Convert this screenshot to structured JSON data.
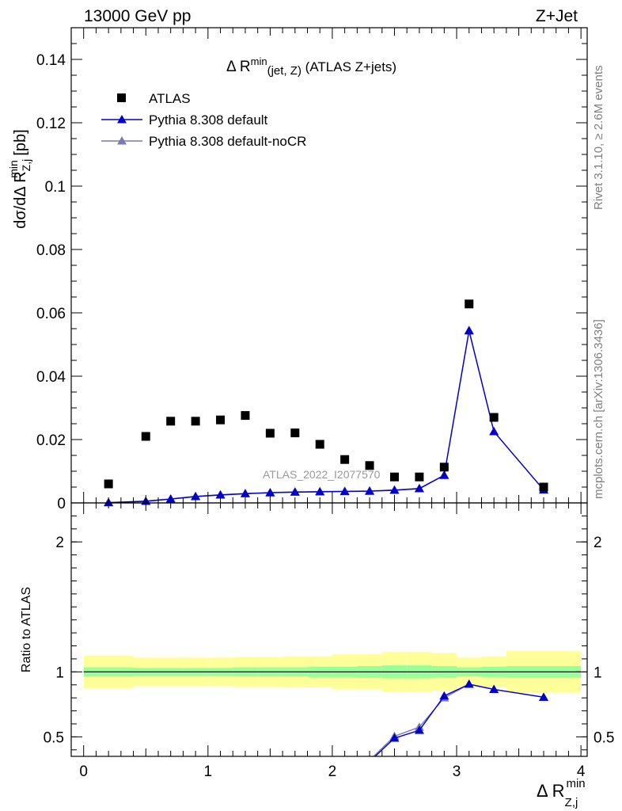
{
  "header": {
    "left": "13000 GeV pp",
    "right": "Z+Jet"
  },
  "side_labels": {
    "rivet": "Rivet 3.1.10, ≥ 2.6M events",
    "mcplots": "mcplots.cern.ch [arXiv:1306.3436]"
  },
  "main_panel": {
    "title_prefix": "Δ R",
    "title_sup": "min",
    "title_sub": "(jet, Z)",
    "title_suffix": " (ATLAS Z+jets)",
    "ylabel_main": "dσ/dΔ R",
    "ylabel_sup": "min",
    "ylabel_sub": "Z,j",
    "ylabel_unit": " [pb]",
    "watermark": "ATLAS_2022_I2077570"
  },
  "ratio_panel": {
    "ylabel": "Ratio to ATLAS"
  },
  "xlabel": {
    "main": "Δ R",
    "sup": "min",
    "sub": "Z,j"
  },
  "legend": [
    {
      "label": "ATLAS",
      "marker": "square",
      "color": "#000000"
    },
    {
      "label": "Pythia 8.308 default",
      "marker": "triangle",
      "color": "#0000cc"
    },
    {
      "label": "Pythia 8.308 default-noCR",
      "marker": "triangle",
      "color": "#7a7ab8"
    }
  ],
  "chart_data": {
    "type": "scatter",
    "x_ticks": [
      0,
      1,
      2,
      3,
      4
    ],
    "xlim": [
      -0.1,
      4.05
    ],
    "main": {
      "ylim": [
        0,
        0.15
      ],
      "y_ticks": [
        0,
        0.02,
        0.04,
        0.06,
        0.08,
        0.1,
        0.12,
        0.14
      ],
      "y_tick_labels": [
        "0",
        "0.02",
        "0.04",
        "0.06",
        "0.08",
        "0.1",
        "0.12",
        "0.14"
      ],
      "series": [
        {
          "name": "ATLAS",
          "x": [
            0.2,
            0.5,
            0.7,
            0.9,
            1.1,
            1.3,
            1.5,
            1.7,
            1.9,
            2.1,
            2.3,
            2.5,
            2.7,
            2.9,
            3.1,
            3.3,
            3.7
          ],
          "y": [
            0.006,
            0.021,
            0.0258,
            0.0258,
            0.0262,
            0.0276,
            0.022,
            0.0221,
            0.0185,
            0.0137,
            0.0118,
            0.0082,
            0.0082,
            0.0113,
            0.0628,
            0.027,
            0.005
          ]
        },
        {
          "name": "Pythia 8.308 default",
          "x": [
            0.2,
            0.5,
            0.7,
            0.9,
            1.1,
            1.3,
            1.5,
            1.7,
            1.9,
            2.1,
            2.3,
            2.5,
            2.7,
            2.9,
            3.1,
            3.3,
            3.7
          ],
          "y": [
            0.0001,
            0.0005,
            0.0012,
            0.002,
            0.0025,
            0.0029,
            0.0032,
            0.0034,
            0.0035,
            0.0036,
            0.0037,
            0.004,
            0.0045,
            0.0087,
            0.0543,
            0.0225,
            0.0041
          ]
        },
        {
          "name": "Pythia 8.308 default-noCR",
          "x": [
            0.2,
            0.5,
            0.7,
            0.9,
            1.1,
            1.3,
            1.5,
            1.7,
            1.9,
            2.1,
            2.3,
            2.5,
            2.7,
            2.9,
            3.1,
            3.3,
            3.7
          ],
          "y": [
            0.0001,
            0.0006,
            0.0013,
            0.0021,
            0.0026,
            0.003,
            0.0033,
            0.0035,
            0.0036,
            0.0037,
            0.0038,
            0.0041,
            0.0046,
            0.0088,
            0.0545,
            0.0225,
            0.0041
          ]
        }
      ]
    },
    "ratio": {
      "ylim": [
        0.35,
        2.3
      ],
      "y_ticks": [
        0.5,
        1,
        2
      ],
      "y_tick_labels": [
        "0.5",
        "1",
        "2"
      ],
      "bins": [
        0.0,
        0.4,
        0.6,
        0.8,
        1.0,
        1.2,
        1.4,
        1.6,
        1.8,
        2.0,
        2.2,
        2.4,
        2.6,
        2.8,
        3.0,
        3.2,
        3.4,
        4.0
      ],
      "band_inner": [
        {
          "lo": 0.965,
          "hi": 1.035
        },
        {
          "lo": 0.97,
          "hi": 1.03
        },
        {
          "lo": 0.97,
          "hi": 1.03
        },
        {
          "lo": 0.97,
          "hi": 1.03
        },
        {
          "lo": 0.97,
          "hi": 1.03
        },
        {
          "lo": 0.965,
          "hi": 1.035
        },
        {
          "lo": 0.965,
          "hi": 1.035
        },
        {
          "lo": 0.965,
          "hi": 1.035
        },
        {
          "lo": 0.96,
          "hi": 1.04
        },
        {
          "lo": 0.96,
          "hi": 1.04
        },
        {
          "lo": 0.955,
          "hi": 1.045
        },
        {
          "lo": 0.95,
          "hi": 1.05
        },
        {
          "lo": 0.95,
          "hi": 1.05
        },
        {
          "lo": 0.955,
          "hi": 1.045
        },
        {
          "lo": 0.965,
          "hi": 1.035
        },
        {
          "lo": 0.96,
          "hi": 1.04
        },
        {
          "lo": 0.955,
          "hi": 1.045
        }
      ],
      "band_outer": [
        {
          "lo": 0.875,
          "hi": 1.125
        },
        {
          "lo": 0.89,
          "hi": 1.11
        },
        {
          "lo": 0.89,
          "hi": 1.11
        },
        {
          "lo": 0.89,
          "hi": 1.11
        },
        {
          "lo": 0.89,
          "hi": 1.11
        },
        {
          "lo": 0.885,
          "hi": 1.115
        },
        {
          "lo": 0.885,
          "hi": 1.115
        },
        {
          "lo": 0.88,
          "hi": 1.12
        },
        {
          "lo": 0.88,
          "hi": 1.12
        },
        {
          "lo": 0.865,
          "hi": 1.135
        },
        {
          "lo": 0.865,
          "hi": 1.135
        },
        {
          "lo": 0.845,
          "hi": 1.155
        },
        {
          "lo": 0.845,
          "hi": 1.155
        },
        {
          "lo": 0.855,
          "hi": 1.145
        },
        {
          "lo": 0.89,
          "hi": 1.11
        },
        {
          "lo": 0.88,
          "hi": 1.12
        },
        {
          "lo": 0.84,
          "hi": 1.16
        }
      ],
      "series": [
        {
          "name": "Pythia 8.308 default",
          "x": [
            2.3,
            2.5,
            2.7,
            2.9,
            3.1,
            3.3,
            3.7
          ],
          "y": [
            0.31,
            0.49,
            0.55,
            0.815,
            0.905,
            0.865,
            0.805
          ]
        },
        {
          "name": "Pythia 8.308 default-noCR",
          "x": [
            2.3,
            2.5,
            2.7,
            2.9,
            3.1,
            3.3,
            3.7
          ],
          "y": [
            0.32,
            0.505,
            0.575,
            0.8,
            0.905,
            0.865,
            0.805
          ]
        }
      ]
    }
  },
  "colors": {
    "band_inner": "#99ff99",
    "band_outer": "#ffff99",
    "default": "#0000cc",
    "nocr": "#7a7ab8",
    "data": "#000000",
    "side_text": "#7f7f7f",
    "watermark": "#999999"
  }
}
